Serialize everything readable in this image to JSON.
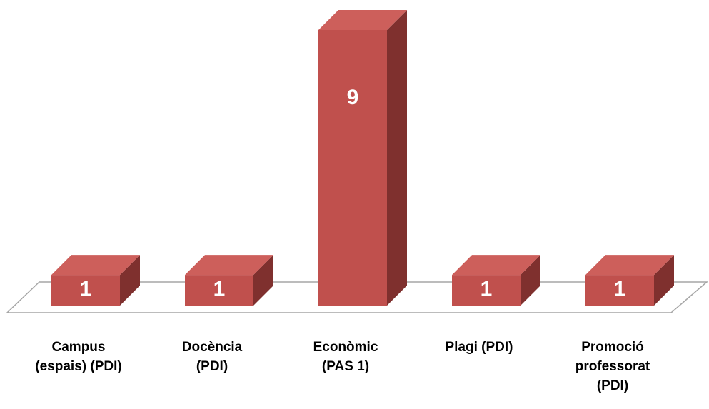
{
  "chart_data": {
    "type": "bar3d",
    "categories": [
      "Campus (espais) (PDI)",
      "Docència (PDI)",
      "Econòmic (PAS 1)",
      "Plagi (PDI)",
      "Promoció professorat (PDI)"
    ],
    "values": [
      1,
      1,
      9,
      1,
      1
    ],
    "color": "#c0504d"
  }
}
